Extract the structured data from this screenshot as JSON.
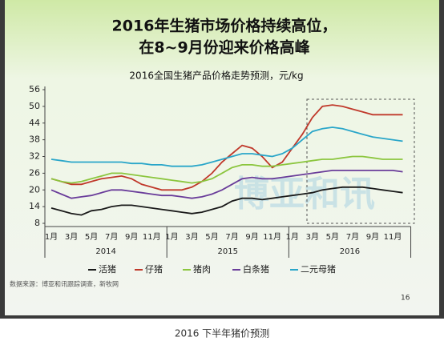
{
  "chart_data": {
    "type": "line",
    "title": "2016年生猪市场价格持续高位，",
    "subtitle": "在8~9月份迎来价格高峰",
    "chart_title": "2016全国生猪产品价格走势预测，元/kg",
    "categories": [
      "1月",
      null,
      "3月",
      null,
      "5月",
      null,
      "7月",
      null,
      "9月",
      null,
      "11月",
      null,
      "1月",
      null,
      "3月",
      null,
      "5月",
      null,
      "7月",
      null,
      "9月",
      null,
      "11月",
      null,
      "1月",
      null,
      "3月",
      null,
      "5月",
      null,
      "7月",
      null,
      "9月",
      null,
      "11月",
      null
    ],
    "years": [
      "2014",
      "2015",
      "2016"
    ],
    "series": [
      {
        "name": "活猪",
        "color": "#1a1a1a",
        "values": [
          13.5,
          12.5,
          11.5,
          11,
          12.5,
          13,
          14,
          14.5,
          14.5,
          14,
          13.5,
          13,
          12.5,
          12,
          11.5,
          12,
          13,
          14,
          16,
          17,
          17,
          16.5,
          17,
          17.5,
          18,
          18.5,
          19,
          20,
          20.5,
          21,
          21,
          21,
          20.5,
          20,
          19.5,
          19
        ]
      },
      {
        "name": "仔猪",
        "color": "#c0392b",
        "values": [
          24,
          23,
          22,
          22,
          23,
          24,
          24.5,
          25,
          24,
          22,
          21,
          20,
          20,
          20,
          21,
          23,
          26,
          30,
          33,
          36,
          35,
          32,
          28,
          30,
          35,
          40,
          46,
          50,
          50.5,
          50,
          49,
          48,
          47,
          47,
          47,
          47
        ]
      },
      {
        "name": "猪肉",
        "color": "#8cc63f",
        "values": [
          24,
          23,
          22.5,
          23,
          24,
          25,
          26,
          26,
          25.5,
          25,
          24.5,
          24,
          23.5,
          23,
          22.5,
          23,
          24,
          26,
          28,
          29,
          29,
          28.5,
          28.5,
          29,
          29.5,
          30,
          30.5,
          31,
          31,
          31.5,
          32,
          32,
          31.5,
          31,
          31,
          31
        ]
      },
      {
        "name": "白条猪",
        "color": "#6a3d9a",
        "values": [
          20,
          18.5,
          17,
          17.5,
          18,
          19,
          20,
          20,
          19.5,
          19,
          18.5,
          18,
          18,
          17.5,
          17,
          17.5,
          18.5,
          20,
          22,
          24,
          24.5,
          24,
          24,
          24.5,
          25,
          25.5,
          26,
          26.5,
          27,
          27,
          27,
          27,
          27,
          27,
          27,
          26.5
        ]
      },
      {
        "name": "二元母猪",
        "color": "#2aa6c9",
        "values": [
          31,
          30.5,
          30,
          30,
          30,
          30,
          30,
          30,
          29.5,
          29.5,
          29,
          29,
          28.5,
          28.5,
          28.5,
          29,
          30,
          31,
          32,
          33,
          33,
          32.5,
          32,
          33,
          35,
          38,
          41,
          42,
          42.5,
          42,
          41,
          40,
          39,
          38.5,
          38,
          37.5
        ]
      }
    ],
    "ylim": [
      8,
      56
    ],
    "yticks": [
      8,
      14,
      20,
      26,
      32,
      38,
      44,
      50,
      56
    ],
    "source": "数据来源：博亚和讯跟踪调查，新牧网",
    "watermark": "博亚和讯",
    "page_number": "16",
    "caption": "2016 下半年猪价预测"
  }
}
